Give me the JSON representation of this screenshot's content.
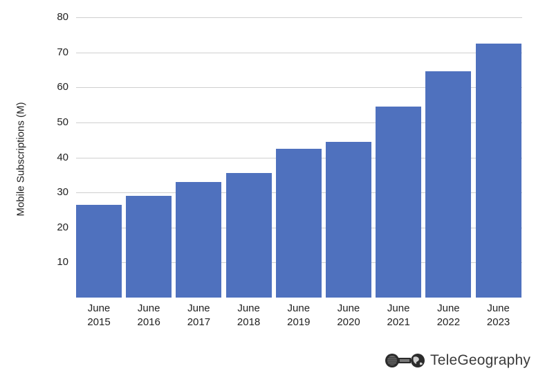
{
  "chart_data": {
    "type": "bar",
    "title": "",
    "xlabel": "",
    "ylabel": "Mobile Subscriptions (M)",
    "ylim": [
      0,
      80
    ],
    "yticks": [
      10,
      20,
      30,
      40,
      50,
      60,
      70,
      80
    ],
    "grid": true,
    "legend": null,
    "categories": [
      "June 2015",
      "June 2016",
      "June 2017",
      "June 2018",
      "June 2019",
      "June 2020",
      "June 2021",
      "June 2022",
      "June 2023"
    ],
    "category_lines": [
      [
        "June",
        "2015"
      ],
      [
        "June",
        "2016"
      ],
      [
        "June",
        "2017"
      ],
      [
        "June",
        "2018"
      ],
      [
        "June",
        "2019"
      ],
      [
        "June",
        "2020"
      ],
      [
        "June",
        "2021"
      ],
      [
        "June",
        "2022"
      ],
      [
        "June",
        "2023"
      ]
    ],
    "values": [
      26.5,
      29,
      33,
      35.5,
      42.5,
      44.5,
      54.5,
      64.5,
      72.5
    ],
    "bar_color": "#4f71be"
  },
  "branding": {
    "logo_text": "TeleGeography",
    "logo_icon": "telegeography-globe-icon"
  }
}
